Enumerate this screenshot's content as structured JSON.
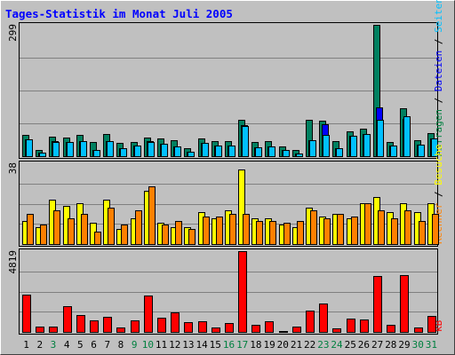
{
  "title": "Tages-Statistik im Monat Juli 2005",
  "chart_data": [
    {
      "type": "bar",
      "panel": "top",
      "ymax_label": "299",
      "right_label": {
        "parts": [
          {
            "text": "Anfragen",
            "color": "#008040"
          },
          {
            "text": " / ",
            "color": "#000000"
          },
          {
            "text": "Dateien",
            "color": "#0000ff"
          },
          {
            "text": " / ",
            "color": "#000000"
          },
          {
            "text": "Seiten",
            "color": "#00c0ff"
          }
        ]
      },
      "ylim": [
        0,
        299
      ],
      "series": [
        {
          "name": "Anfragen",
          "color": "#008060",
          "values": [
            48,
            14,
            44,
            42,
            48,
            32,
            50,
            30,
            32,
            42,
            40,
            36,
            18,
            40,
            34,
            34,
            82,
            32,
            34,
            22,
            14,
            82,
            80,
            34,
            56,
            62,
            299,
            32,
            110,
            36,
            52
          ]
        },
        {
          "name": "Dateien",
          "color": "#0000ff",
          "values": [
            38,
            8,
            34,
            32,
            34,
            14,
            34,
            18,
            24,
            34,
            28,
            22,
            10,
            30,
            24,
            24,
            70,
            20,
            22,
            14,
            6,
            36,
            72,
            18,
            46,
            50,
            112,
            24,
            84,
            26,
            40
          ]
        },
        {
          "name": "Seiten",
          "color": "#00c0ff",
          "values": [
            38,
            8,
            32,
            32,
            34,
            14,
            34,
            18,
            24,
            32,
            28,
            22,
            10,
            30,
            24,
            24,
            68,
            20,
            22,
            14,
            6,
            36,
            48,
            18,
            46,
            50,
            82,
            24,
            90,
            26,
            40
          ]
        }
      ]
    },
    {
      "type": "bar",
      "panel": "middle",
      "ymax_label": "38",
      "right_label": {
        "parts": [
          {
            "text": "Rechner",
            "color": "#ff8000"
          },
          {
            "text": " / ",
            "color": "#000000"
          },
          {
            "text": "Besuche",
            "color": "#ffff00"
          }
        ]
      },
      "ylim": [
        0,
        38
      ],
      "series": [
        {
          "name": "Besuche",
          "color": "#ffff00",
          "values": [
            11,
            8,
            21,
            18,
            19,
            10,
            21,
            7,
            12,
            25,
            10,
            8,
            8,
            15,
            12,
            16,
            35,
            12,
            12,
            9,
            8,
            17,
            13,
            14,
            12,
            19,
            22,
            15,
            19,
            15,
            19
          ]
        },
        {
          "name": "Rechner",
          "color": "#ff8000",
          "values": [
            14,
            9,
            16,
            12,
            14,
            6,
            17,
            9,
            16,
            27,
            9,
            11,
            7,
            13,
            13,
            14,
            14,
            11,
            11,
            10,
            11,
            16,
            12,
            14,
            13,
            19,
            16,
            12,
            16,
            11,
            14
          ]
        }
      ]
    },
    {
      "type": "bar",
      "panel": "bottom",
      "ymax_label": "4819",
      "right_label": {
        "parts": [
          {
            "text": "kB",
            "color": "#ff0000"
          }
        ]
      },
      "ylim": [
        0,
        4819
      ],
      "series": [
        {
          "name": "kB",
          "color": "#ff0000",
          "values": [
            2220,
            340,
            340,
            1550,
            980,
            680,
            880,
            250,
            700,
            2170,
            840,
            1140,
            570,
            620,
            240,
            550,
            4819,
            410,
            630,
            70,
            300,
            1280,
            1700,
            220,
            820,
            750,
            3340,
            450,
            3400,
            240,
            930
          ]
        }
      ]
    }
  ],
  "x_labels": [
    {
      "text": "1",
      "color": "#000000"
    },
    {
      "text": "2",
      "color": "#000000"
    },
    {
      "text": "3",
      "color": "#008040"
    },
    {
      "text": "4",
      "color": "#000000"
    },
    {
      "text": "5",
      "color": "#000000"
    },
    {
      "text": "6",
      "color": "#000000"
    },
    {
      "text": "7",
      "color": "#000000"
    },
    {
      "text": "8",
      "color": "#000000"
    },
    {
      "text": "9",
      "color": "#008040"
    },
    {
      "text": "10",
      "color": "#008040"
    },
    {
      "text": "11",
      "color": "#000000"
    },
    {
      "text": "12",
      "color": "#000000"
    },
    {
      "text": "13",
      "color": "#000000"
    },
    {
      "text": "14",
      "color": "#000000"
    },
    {
      "text": "15",
      "color": "#000000"
    },
    {
      "text": "16",
      "color": "#008040"
    },
    {
      "text": "17",
      "color": "#008040"
    },
    {
      "text": "18",
      "color": "#000000"
    },
    {
      "text": "19",
      "color": "#000000"
    },
    {
      "text": "20",
      "color": "#000000"
    },
    {
      "text": "21",
      "color": "#000000"
    },
    {
      "text": "22",
      "color": "#000000"
    },
    {
      "text": "23",
      "color": "#008040"
    },
    {
      "text": "24",
      "color": "#008040"
    },
    {
      "text": "25",
      "color": "#000000"
    },
    {
      "text": "26",
      "color": "#000000"
    },
    {
      "text": "27",
      "color": "#000000"
    },
    {
      "text": "28",
      "color": "#000000"
    },
    {
      "text": "29",
      "color": "#000000"
    },
    {
      "text": "30",
      "color": "#008040"
    },
    {
      "text": "31",
      "color": "#008040"
    }
  ],
  "colors": {
    "background": "#c0c0c0",
    "plot_background": "#c0c0c0",
    "gridline": "#808080",
    "title": "#0000ff"
  }
}
